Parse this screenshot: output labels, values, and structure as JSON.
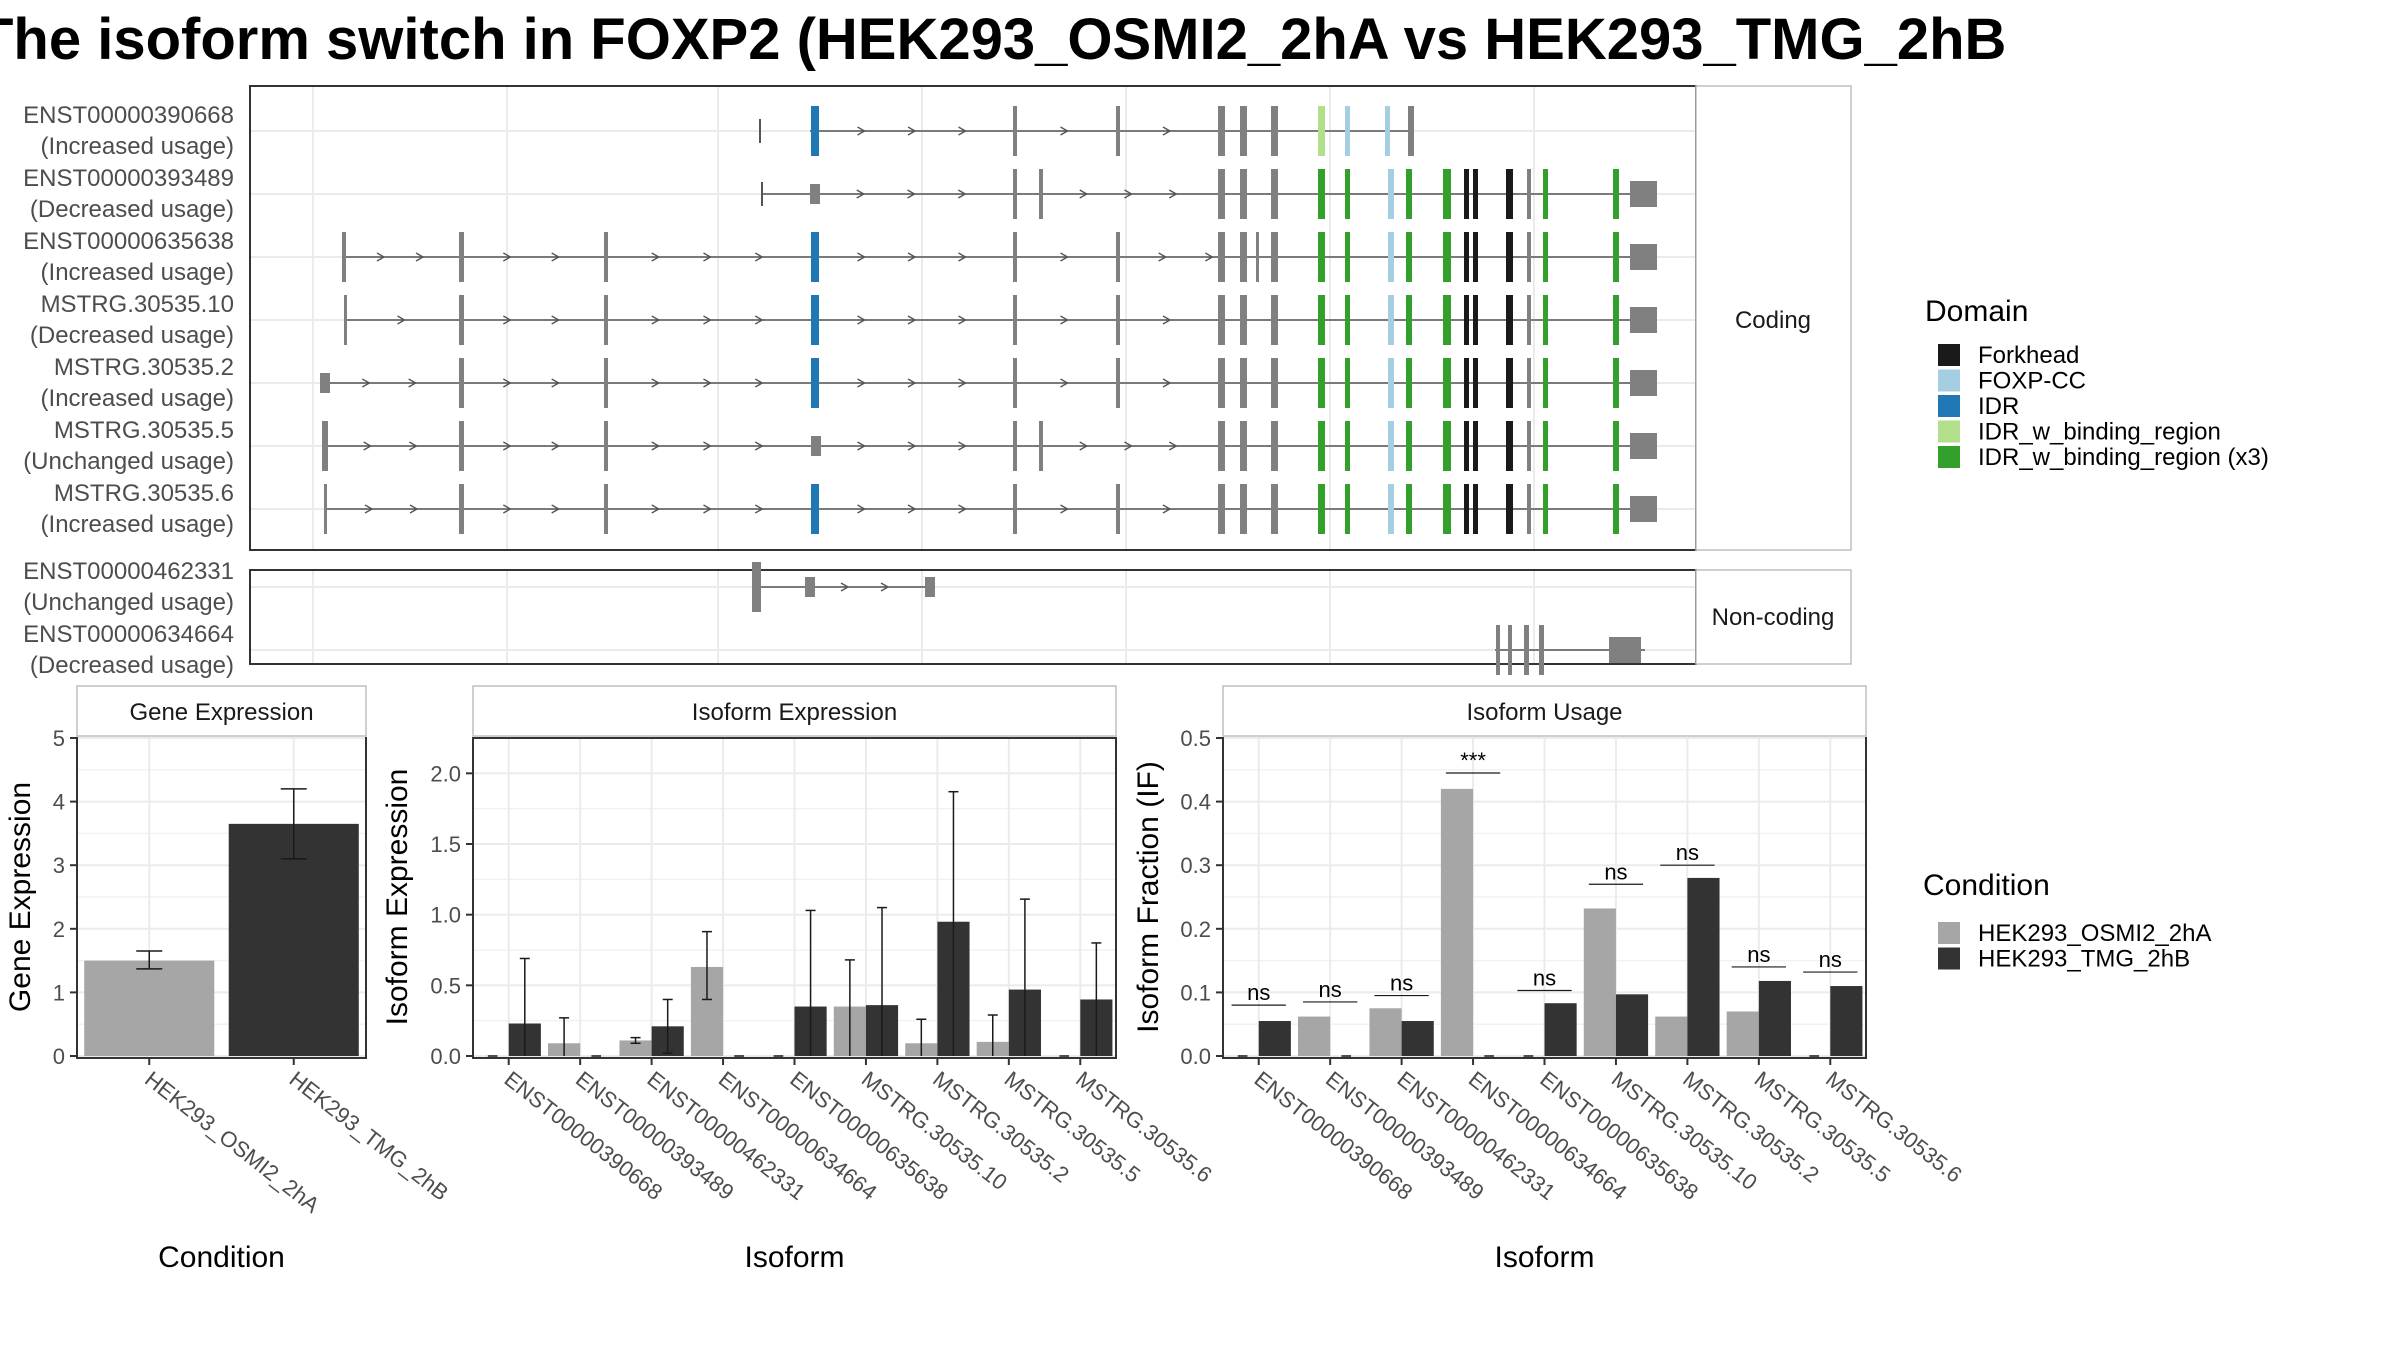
{
  "title": "The isoform switch in FOXP2 (HEK293_OSMI2_2hA vs HEK293_TMG_2hB",
  "colors": {
    "Forkhead": "#1a1a1a",
    "FOXP-CC": "#a6cee3",
    "IDR": "#1f78b4",
    "IDR_w_binding_region": "#b2df8a",
    "IDR_w_binding_region (x3)": "#33a02c",
    "exon": "#808080",
    "cond_a": "#a6a6a6",
    "cond_b": "#333333"
  },
  "structure": {
    "coding_label": "Coding",
    "noncoding_label": "Non-coding",
    "coding": [
      {
        "id": "ENST00000390668",
        "usage": "(Increased usage)"
      },
      {
        "id": "ENST00000393489",
        "usage": "(Decreased usage)"
      },
      {
        "id": "ENST00000635638",
        "usage": "(Increased usage)"
      },
      {
        "id": "MSTRG.30535.10",
        "usage": "(Decreased usage)"
      },
      {
        "id": "MSTRG.30535.2",
        "usage": "(Increased usage)"
      },
      {
        "id": "MSTRG.30535.5",
        "usage": "(Unchanged usage)"
      },
      {
        "id": "MSTRG.30535.6",
        "usage": "(Increased usage)"
      }
    ],
    "noncoding": [
      {
        "id": "ENST00000462331",
        "usage": "(Unchanged usage)"
      },
      {
        "id": "ENST00000634664",
        "usage": "(Decreased usage)"
      }
    ]
  },
  "legend_domain": {
    "title": "Domain",
    "items": [
      "Forkhead",
      "FOXP-CC",
      "IDR",
      "IDR_w_binding_region",
      "IDR_w_binding_region (x3)"
    ]
  },
  "legend_condition": {
    "title": "Condition",
    "items": [
      "HEK293_OSMI2_2hA",
      "HEK293_TMG_2hB"
    ]
  },
  "chart_data": [
    {
      "type": "bar",
      "title": "Gene Expression",
      "xlabel": "Condition",
      "ylabel": "Gene Expression",
      "ylim": [
        0,
        5
      ],
      "yticks": [
        0,
        1,
        2,
        3,
        4,
        5
      ],
      "categories": [
        "HEK293_OSMI2_2hA",
        "HEK293_TMG_2hB"
      ],
      "values": [
        1.5,
        3.65
      ],
      "error_low": [
        1.37,
        3.1
      ],
      "error_high": [
        1.65,
        4.2
      ]
    },
    {
      "type": "bar",
      "title": "Isoform Expression",
      "xlabel": "Isoform",
      "ylabel": "Isoform Expression",
      "ylim": [
        0,
        2.25
      ],
      "yticks": [
        0.0,
        0.5,
        1.0,
        1.5,
        2.0
      ],
      "ytick_labels": [
        "0.0",
        "0.5",
        "1.0",
        "1.5",
        "2.0"
      ],
      "categories": [
        "ENST00000390668",
        "ENST00000393489",
        "ENST00000462331",
        "ENST00000634664",
        "ENST00000635638",
        "MSTRG.30535.10",
        "MSTRG.30535.2",
        "MSTRG.30535.5",
        "MSTRG.30535.6"
      ],
      "series": [
        {
          "name": "HEK293_OSMI2_2hA",
          "values": [
            0.0,
            0.09,
            0.11,
            0.63,
            0.0,
            0.35,
            0.09,
            0.1,
            0.0
          ],
          "error_low": [
            0.0,
            0.0,
            0.09,
            0.4,
            0.0,
            0.0,
            0.0,
            0.0,
            0.0
          ],
          "error_high": [
            0.0,
            0.27,
            0.13,
            0.88,
            0.0,
            0.68,
            0.26,
            0.29,
            0.0
          ]
        },
        {
          "name": "HEK293_TMG_2hB",
          "values": [
            0.23,
            0.0,
            0.21,
            0.0,
            0.35,
            0.36,
            0.95,
            0.47,
            0.4
          ],
          "error_low": [
            0.0,
            0.0,
            0.02,
            0.0,
            0.0,
            0.0,
            0.0,
            0.0,
            0.0
          ],
          "error_high": [
            0.69,
            0.0,
            0.4,
            0.0,
            1.03,
            1.05,
            1.87,
            1.11,
            0.8
          ]
        }
      ]
    },
    {
      "type": "bar",
      "title": "Isoform Usage",
      "xlabel": "Isoform",
      "ylabel": "Isoform Fraction (IF)",
      "ylim": [
        0,
        0.5
      ],
      "yticks": [
        0.0,
        0.1,
        0.2,
        0.3,
        0.4,
        0.5
      ],
      "ytick_labels": [
        "0.0",
        "0.1",
        "0.2",
        "0.3",
        "0.4",
        "0.5"
      ],
      "categories": [
        "ENST00000390668",
        "ENST00000393489",
        "ENST00000462331",
        "ENST00000634664",
        "ENST00000635638",
        "MSTRG.30535.10",
        "MSTRG.30535.2",
        "MSTRG.30535.5",
        "MSTRG.30535.6"
      ],
      "series": [
        {
          "name": "HEK293_OSMI2_2hA",
          "values": [
            0.0,
            0.062,
            0.075,
            0.42,
            0.0,
            0.232,
            0.062,
            0.07,
            0.0
          ]
        },
        {
          "name": "HEK293_TMG_2hB",
          "values": [
            0.055,
            0.0,
            0.055,
            0.0,
            0.083,
            0.097,
            0.28,
            0.118,
            0.11
          ]
        }
      ],
      "significance": [
        "ns",
        "ns",
        "ns",
        "***",
        "ns",
        "ns",
        "ns",
        "ns",
        "ns"
      ],
      "significance_y": [
        0.08,
        0.085,
        0.095,
        0.445,
        0.103,
        0.27,
        0.3,
        0.14,
        0.132
      ]
    }
  ]
}
